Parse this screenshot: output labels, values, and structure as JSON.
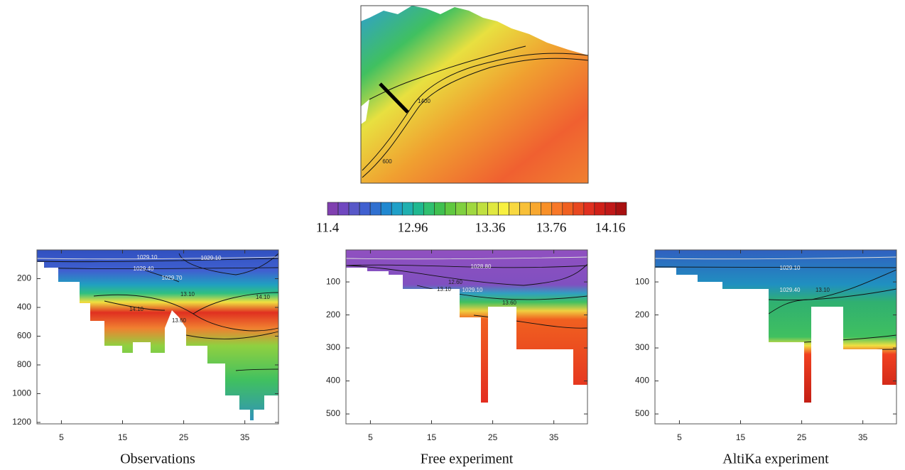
{
  "map": {
    "contour_labels": [
      "1400",
      "600"
    ]
  },
  "colorbar": {
    "labels": [
      "11.4",
      "12.96",
      "13.36",
      "13.76",
      "14.16"
    ]
  },
  "panels": [
    {
      "title": "Observations",
      "ylim": [
        0,
        1210
      ],
      "yticks": [
        200,
        400,
        600,
        800,
        1000,
        1200
      ],
      "xlim": [
        1,
        40.5
      ],
      "xticks": [
        5,
        15,
        25,
        35
      ],
      "contour_labels": [
        "1029.10",
        "1029.10",
        "1029.40",
        "1029.70",
        "13.10",
        "13.60",
        "14.10",
        "14.10"
      ]
    },
    {
      "title": "Free experiment",
      "ylim": [
        3,
        530
      ],
      "yticks": [
        100,
        200,
        300,
        400,
        500
      ],
      "xlim": [
        1,
        40.5
      ],
      "xticks": [
        5,
        15,
        25,
        35
      ],
      "contour_labels": [
        "1028.80",
        "12.60",
        "13.10",
        "1029.10",
        "13.60"
      ]
    },
    {
      "title": "AltiKa experiment",
      "ylim": [
        3,
        530
      ],
      "yticks": [
        100,
        200,
        300,
        400,
        500
      ],
      "xlim": [
        1,
        40.5
      ],
      "xticks": [
        5,
        15,
        25,
        35
      ],
      "contour_labels": [
        "1029.10",
        "1029.40",
        "13.10"
      ]
    }
  ]
}
